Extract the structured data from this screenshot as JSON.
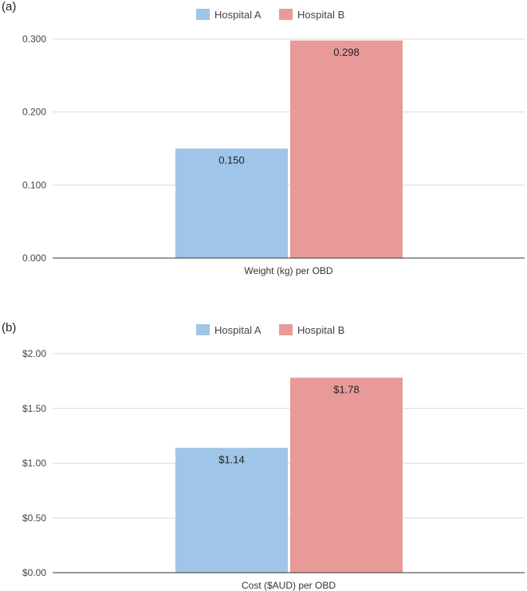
{
  "panels": [
    {
      "label": "(a)"
    },
    {
      "label": "(b)"
    }
  ],
  "colors": {
    "hospital_a": "#9fc5e8",
    "hospital_b": "#ea9999",
    "grid": "#d9d9d9",
    "axis": "#333333"
  },
  "chart_data": [
    {
      "type": "bar",
      "categories": [
        "Weight (kg) per OBD"
      ],
      "series": [
        {
          "name": "Hospital A",
          "values": [
            0.15
          ]
        },
        {
          "name": "Hospital B",
          "values": [
            0.298
          ]
        }
      ],
      "data_labels": [
        "0.150",
        "0.298"
      ],
      "yticks": [
        "0.000",
        "0.100",
        "0.200",
        "0.300"
      ],
      "ylim": [
        0,
        0.3
      ],
      "legend": "top-center",
      "grid": true
    },
    {
      "type": "bar",
      "categories": [
        "Cost ($AUD) per OBD"
      ],
      "series": [
        {
          "name": "Hospital A",
          "values": [
            1.14
          ]
        },
        {
          "name": "Hospital B",
          "values": [
            1.78
          ]
        }
      ],
      "data_labels": [
        "$1.14",
        "$1.78"
      ],
      "yticks": [
        "$0.00",
        "$0.50",
        "$1.00",
        "$1.50",
        "$2.00"
      ],
      "ylim": [
        0,
        2
      ],
      "legend": "top-center",
      "grid": true
    }
  ]
}
